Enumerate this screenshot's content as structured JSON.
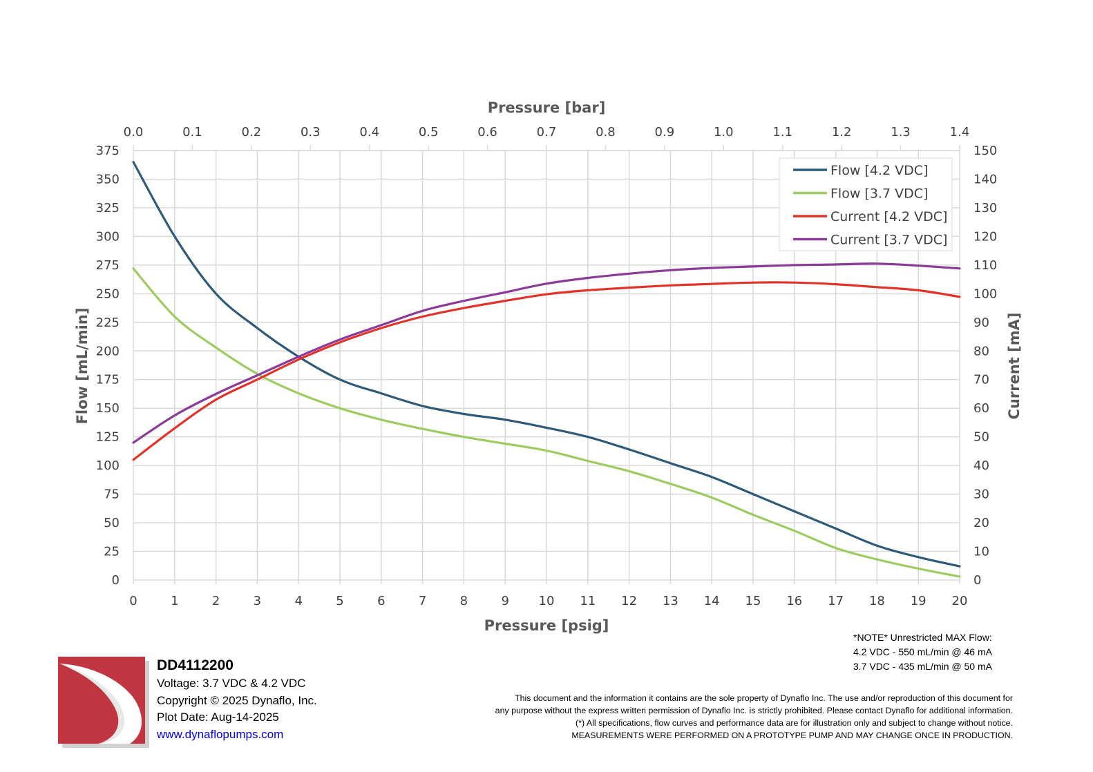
{
  "chart_data": {
    "type": "line",
    "title": "",
    "xlabel": "Pressure [psig]",
    "x2label": "Pressure [bar]",
    "ylabel": "Flow [mL/min]",
    "y2label": "Current [mA]",
    "xlim": [
      0,
      20
    ],
    "x2lim": [
      0,
      1.4
    ],
    "ylim": [
      0,
      375
    ],
    "y2lim": [
      0,
      150
    ],
    "xticks": [
      "0",
      "1",
      "2",
      "3",
      "4",
      "5",
      "6",
      "7",
      "8",
      "9",
      "10",
      "11",
      "12",
      "13",
      "14",
      "15",
      "16",
      "17",
      "18",
      "19",
      "20"
    ],
    "x2ticks": [
      "0.0",
      "0.1",
      "0.2",
      "0.3",
      "0.4",
      "0.5",
      "0.6",
      "0.7",
      "0.8",
      "0.9",
      "1.0",
      "1.1",
      "1.2",
      "1.3",
      "1.4"
    ],
    "yticks": [
      "0",
      "25",
      "50",
      "75",
      "100",
      "125",
      "150",
      "175",
      "200",
      "225",
      "250",
      "275",
      "300",
      "325",
      "350",
      "375"
    ],
    "y2ticks": [
      "0",
      "10",
      "20",
      "30",
      "40",
      "50",
      "60",
      "70",
      "80",
      "90",
      "100",
      "110",
      "120",
      "130",
      "140",
      "150"
    ],
    "grid": true,
    "legend_position": "top-right",
    "x": [
      0,
      1,
      2,
      3,
      4,
      5,
      6,
      7,
      8,
      9,
      10,
      11,
      12,
      13,
      14,
      15,
      16,
      17,
      18,
      19,
      20
    ],
    "series": [
      {
        "name": "Flow [4.2 VDC]",
        "axis": "left",
        "color": "#2e5a7a",
        "values": [
          365,
          300,
          250,
          220,
          195,
          175,
          163,
          152,
          145,
          140,
          133,
          125,
          114,
          102,
          90,
          75,
          60,
          45,
          30,
          20,
          12
        ]
      },
      {
        "name": "Flow [3.7 VDC]",
        "axis": "left",
        "color": "#9ccc5f",
        "values": [
          272,
          230,
          203,
          180,
          163,
          150,
          140,
          132,
          125,
          119,
          113,
          104,
          95,
          84,
          72,
          57,
          43,
          28,
          18,
          10,
          3
        ]
      },
      {
        "name": "Current [4.2 VDC]",
        "axis": "right",
        "color": "#e2332a",
        "values": [
          42,
          53,
          63,
          70,
          77,
          83,
          88,
          92,
          95,
          97.5,
          99.8,
          101.2,
          102.1,
          102.9,
          103.4,
          103.9,
          103.9,
          103.3,
          102.3,
          101.2,
          98.9
        ]
      },
      {
        "name": "Current [3.7 VDC]",
        "axis": "right",
        "color": "#8b3a97",
        "values": [
          48,
          57.5,
          65,
          71.5,
          78,
          84,
          89,
          94,
          97.5,
          100.5,
          103.5,
          105.5,
          107,
          108.2,
          109,
          109.5,
          110,
          110.2,
          110.5,
          109.8,
          108.8
        ]
      }
    ]
  },
  "info": {
    "model": "DD4112200",
    "voltage": "Voltage: 3.7 VDC & 4.2 VDC",
    "copyright": "Copyright © 2025 Dynaflo, Inc.",
    "plot_date": "Plot Date: Aug-14-2025",
    "website": "www.dynaflopumps.com"
  },
  "note": {
    "line1": "*NOTE* Unrestricted MAX Flow:",
    "line2": "4.2 VDC - 550 mL/min @ 46 mA",
    "line3": "3.7 VDC - 435 mL/min @ 50 mA"
  },
  "disclaimer": {
    "line1": "This document and the information it contains are the sole property of Dynaflo Inc. The use and/or reproduction of this document for",
    "line2": "any purpose without the express written permission of Dynaflo Inc. is strictly prohibited. Please contact Dynaflo for additional information.",
    "line3": "(*) All specifications, flow curves and performance data are for illustration only and subject to change without notice.",
    "line4": "MEASUREMENTS WERE PERFORMED ON A PROTOTYPE PUMP AND MAY CHANGE ONCE IN PRODUCTION."
  },
  "colors": {
    "grid": "#d9d9d9",
    "axis_text": "#404040",
    "axis_title": "#595959",
    "logo_red": "#c0353f",
    "link": "#0000ee"
  }
}
